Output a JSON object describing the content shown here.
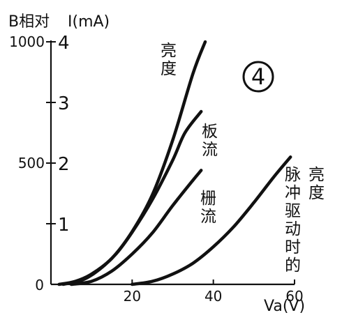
{
  "chart_data": {
    "type": "line",
    "title": "",
    "panel_label": "4",
    "xlabel": "Va(V)",
    "ylabel_left": "B相对",
    "ylabel_right": "I(mA)",
    "xlim": [
      0,
      60
    ],
    "ylim": [
      0,
      4
    ],
    "xticks": [
      {
        "value": 20,
        "label": "20"
      },
      {
        "value": 40,
        "label": "40"
      },
      {
        "value": 60,
        "label": "60"
      }
    ],
    "origin_label": "0",
    "yticks_left": [
      {
        "value": 0.0,
        "label": "0"
      },
      {
        "value": 2.0,
        "label": "500"
      },
      {
        "value": 4.0,
        "label": "1000"
      }
    ],
    "yticks_right": [
      {
        "value": 1,
        "label": "1"
      },
      {
        "value": 2,
        "label": "2"
      },
      {
        "value": 3,
        "label": "3"
      },
      {
        "value": 4,
        "label": "4"
      }
    ],
    "series": [
      {
        "name": "亮度",
        "x": [
          2,
          6,
          10,
          15,
          20,
          25,
          30,
          35,
          38
        ],
        "y": [
          0.0,
          0.05,
          0.17,
          0.43,
          0.87,
          1.48,
          2.38,
          3.48,
          4.0
        ]
      },
      {
        "name": "板流",
        "x": [
          3,
          8,
          12,
          16,
          20,
          25,
          30,
          33,
          37
        ],
        "y": [
          0.0,
          0.08,
          0.25,
          0.5,
          0.86,
          1.4,
          2.05,
          2.5,
          2.85
        ]
      },
      {
        "name": "栅流",
        "x": [
          5,
          10,
          15,
          20,
          25,
          30,
          35,
          37
        ],
        "y": [
          0.0,
          0.05,
          0.22,
          0.5,
          0.85,
          1.3,
          1.72,
          1.88
        ]
      },
      {
        "name": "脉冲驱动时的亮度",
        "x": [
          20,
          25,
          30,
          35,
          40,
          45,
          50,
          55,
          59
        ],
        "y": [
          0.0,
          0.05,
          0.17,
          0.35,
          0.62,
          0.95,
          1.35,
          1.78,
          2.1
        ]
      }
    ]
  },
  "labels": {
    "brightness": [
      "亮",
      "度"
    ],
    "plate_current": [
      "板",
      "流"
    ],
    "grid_current": [
      "栅",
      "流"
    ],
    "pulse_col1": [
      "脉",
      "冲",
      "驱",
      "动",
      "时",
      "的"
    ],
    "pulse_col2": [
      "亮",
      "度"
    ]
  }
}
